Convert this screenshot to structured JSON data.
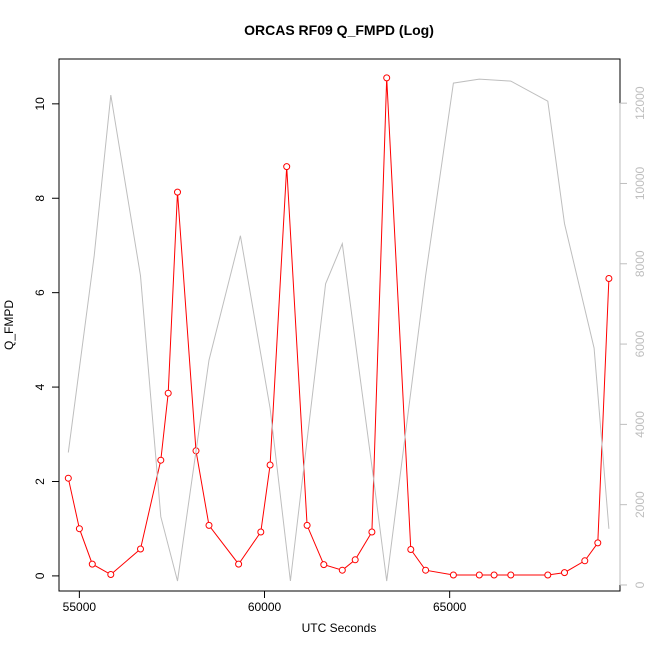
{
  "chart_data": {
    "type": "line",
    "title": "ORCAS RF09 Q_FMPD (Log)",
    "xlabel": "UTC Seconds",
    "ylabel": "Q_FMPD",
    "xlim": [
      54450,
      69600
    ],
    "ylim": [
      -0.32,
      10.95
    ],
    "y2lim": [
      -150,
      13100
    ],
    "x_ticks": [
      55000,
      60000,
      65000
    ],
    "x_tick_labels": [
      "55000",
      "60000",
      "65000"
    ],
    "y_ticks": [
      0,
      2,
      4,
      6,
      8,
      10
    ],
    "y_tick_labels": [
      "0",
      "2",
      "4",
      "6",
      "8",
      "10"
    ],
    "y2_ticks": [
      0,
      2000,
      4000,
      6000,
      8000,
      10000,
      12000
    ],
    "y2_tick_labels": [
      "0",
      "2000",
      "4000",
      "6000",
      "8000",
      "10000",
      "12000"
    ],
    "grid": false,
    "series": [
      {
        "axis": "left",
        "color": "#ff0000",
        "marker": "open-circle",
        "x": [
          54700,
          55000,
          55350,
          55850,
          56650,
          57200,
          57400,
          57650,
          58150,
          58500,
          59300,
          59900,
          60150,
          60600,
          61150,
          61600,
          62100,
          62450,
          62900,
          63300,
          63950,
          64350,
          65100,
          65800,
          66200,
          66650,
          67650,
          68100,
          68650,
          69000,
          69300
        ],
        "values": [
          2.07,
          1.0,
          0.25,
          0.03,
          0.57,
          2.45,
          3.87,
          8.13,
          2.65,
          1.07,
          0.25,
          0.93,
          2.35,
          8.67,
          1.07,
          0.24,
          0.12,
          0.34,
          0.93,
          10.55,
          0.56,
          0.12,
          0.02,
          0.02,
          0.02,
          0.02,
          0.02,
          0.07,
          0.32,
          0.7,
          6.3
        ]
      },
      {
        "axis": "right",
        "color": "#bebebe",
        "marker": "none",
        "x": [
          54700,
          55400,
          55850,
          56650,
          57200,
          57650,
          58500,
          59350,
          60150,
          60700,
          61650,
          62100,
          62950,
          63300,
          64350,
          65100,
          65800,
          66650,
          67650,
          68100,
          68900,
          69300
        ],
        "values": [
          3300,
          8200,
          12200,
          7700,
          1700,
          100,
          5600,
          8700,
          4400,
          100,
          7500,
          8500,
          2600,
          100,
          7700,
          12500,
          12600,
          12550,
          12050,
          9000,
          5900,
          1400
        ]
      }
    ]
  }
}
